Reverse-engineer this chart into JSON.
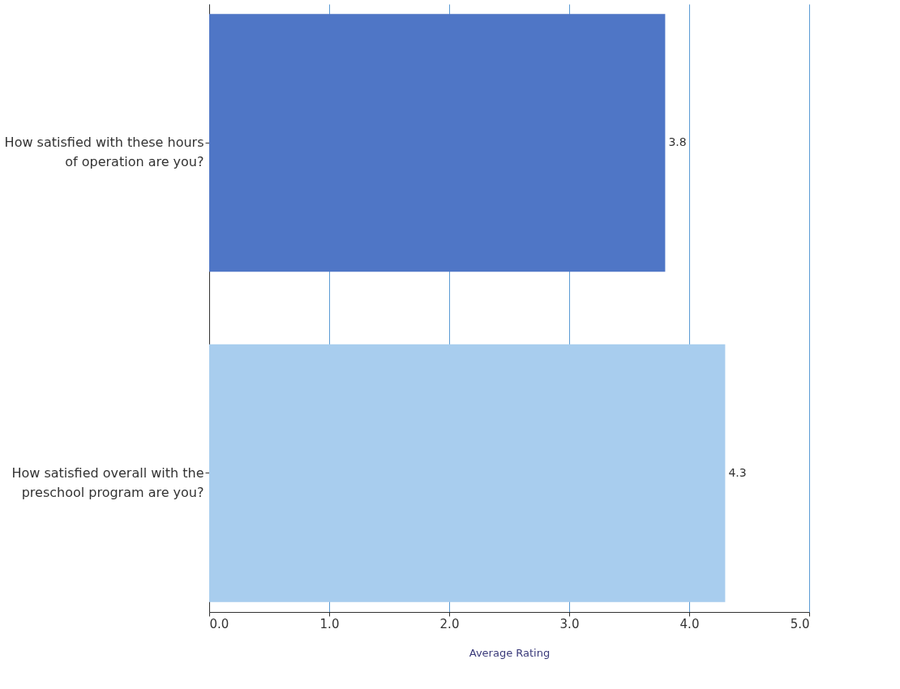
{
  "chart_data": {
    "type": "bar",
    "orientation": "horizontal",
    "xlabel": "Average Rating",
    "categories": [
      "How satisfied with these hours of operation are you?",
      "How satisfied overall with the preschool program are you?"
    ],
    "values": [
      3.8,
      4.3
    ],
    "colors": [
      "#4f76c6",
      "#a8cdee"
    ],
    "xlim": [
      0,
      5
    ],
    "xticks": [
      {
        "value": 0,
        "label": "0.0"
      },
      {
        "value": 1,
        "label": "1.0"
      },
      {
        "value": 2,
        "label": "2.0"
      },
      {
        "value": 3,
        "label": "3.0"
      },
      {
        "value": 4,
        "label": "4.0"
      },
      {
        "value": 5,
        "label": "5.0"
      }
    ],
    "grid": "x",
    "data_labels": true
  }
}
